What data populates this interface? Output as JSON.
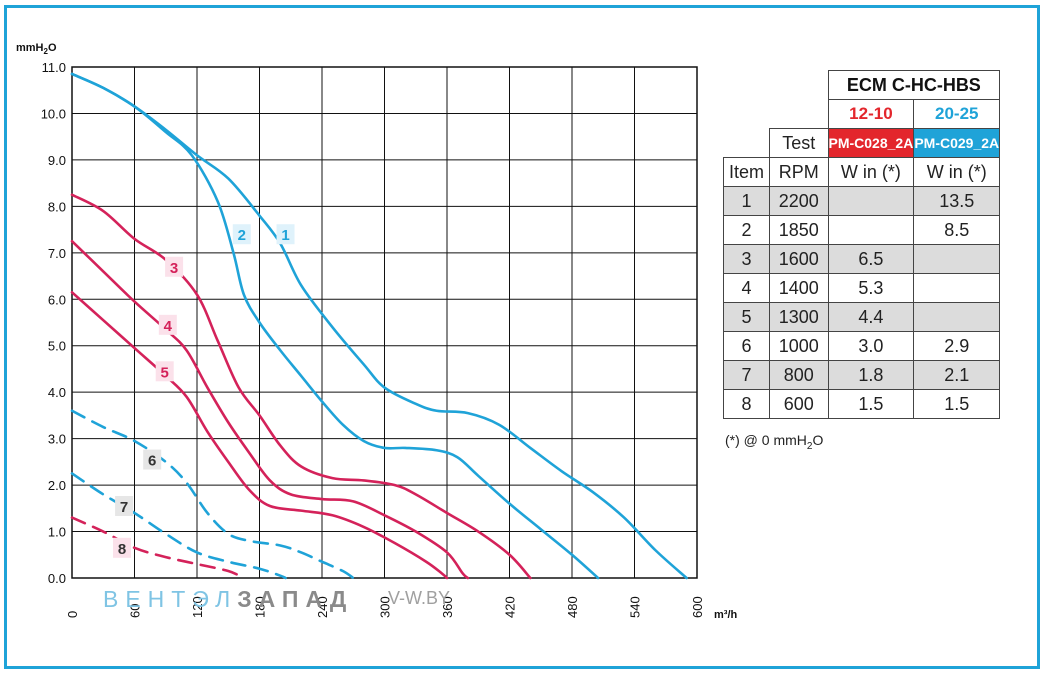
{
  "chart_data": {
    "type": "line",
    "xlabel": "m³/h",
    "ylabel_main": "mmH",
    "ylabel_sub": "2",
    "ylabel_end": "O",
    "xlim": [
      0,
      600
    ],
    "ylim": [
      0,
      11
    ],
    "x_ticks": [
      "0",
      "60",
      "120",
      "180",
      "240",
      "300",
      "360",
      "420",
      "480",
      "540",
      "600"
    ],
    "y_ticks": [
      "0.0",
      "1.0",
      "2.0",
      "3.0",
      "4.0",
      "5.0",
      "6.0",
      "7.0",
      "8.0",
      "9.0",
      "10.0",
      "11.0"
    ],
    "grid": true,
    "series": [
      {
        "name": "1",
        "color": "#1fa3d8",
        "dashed": false,
        "label_pos": [
          205,
          7.4
        ],
        "points": [
          [
            0,
            10.85
          ],
          [
            30,
            10.55
          ],
          [
            60,
            10.15
          ],
          [
            90,
            9.65
          ],
          [
            120,
            9.1
          ],
          [
            150,
            8.6
          ],
          [
            180,
            7.8
          ],
          [
            200,
            7.2
          ],
          [
            220,
            6.3
          ],
          [
            250,
            5.4
          ],
          [
            280,
            4.6
          ],
          [
            300,
            4.1
          ],
          [
            330,
            3.75
          ],
          [
            350,
            3.6
          ],
          [
            380,
            3.55
          ],
          [
            410,
            3.3
          ],
          [
            440,
            2.8
          ],
          [
            470,
            2.3
          ],
          [
            500,
            1.85
          ],
          [
            530,
            1.3
          ],
          [
            560,
            0.6
          ],
          [
            590,
            0
          ]
        ]
      },
      {
        "name": "2",
        "color": "#1fa3d8",
        "dashed": false,
        "label_pos": [
          163,
          7.4
        ],
        "points": [
          [
            0,
            10.85
          ],
          [
            30,
            10.55
          ],
          [
            60,
            10.15
          ],
          [
            90,
            9.6
          ],
          [
            115,
            9.1
          ],
          [
            140,
            8.1
          ],
          [
            155,
            7.0
          ],
          [
            165,
            6.1
          ],
          [
            180,
            5.5
          ],
          [
            200,
            4.9
          ],
          [
            220,
            4.35
          ],
          [
            240,
            3.8
          ],
          [
            260,
            3.3
          ],
          [
            280,
            2.95
          ],
          [
            300,
            2.8
          ],
          [
            320,
            2.8
          ],
          [
            350,
            2.75
          ],
          [
            370,
            2.6
          ],
          [
            390,
            2.2
          ],
          [
            420,
            1.6
          ],
          [
            450,
            1.05
          ],
          [
            480,
            0.5
          ],
          [
            505,
            0
          ]
        ]
      },
      {
        "name": "3",
        "color": "#d4225a",
        "dashed": false,
        "label_pos": [
          98,
          6.7
        ],
        "points": [
          [
            0,
            8.25
          ],
          [
            30,
            7.9
          ],
          [
            60,
            7.3
          ],
          [
            90,
            6.85
          ],
          [
            120,
            6.1
          ],
          [
            140,
            5.1
          ],
          [
            160,
            4.1
          ],
          [
            180,
            3.5
          ],
          [
            200,
            2.85
          ],
          [
            220,
            2.4
          ],
          [
            250,
            2.15
          ],
          [
            280,
            2.1
          ],
          [
            310,
            2.0
          ],
          [
            330,
            1.8
          ],
          [
            360,
            1.4
          ],
          [
            390,
            1.0
          ],
          [
            420,
            0.5
          ],
          [
            440,
            0
          ]
        ]
      },
      {
        "name": "4",
        "color": "#d4225a",
        "dashed": false,
        "label_pos": [
          92,
          5.45
        ],
        "points": [
          [
            0,
            7.25
          ],
          [
            30,
            6.6
          ],
          [
            60,
            5.95
          ],
          [
            90,
            5.35
          ],
          [
            110,
            4.9
          ],
          [
            130,
            4.1
          ],
          [
            150,
            3.35
          ],
          [
            170,
            2.7
          ],
          [
            190,
            2.1
          ],
          [
            210,
            1.8
          ],
          [
            240,
            1.7
          ],
          [
            270,
            1.65
          ],
          [
            300,
            1.35
          ],
          [
            330,
            1.0
          ],
          [
            360,
            0.55
          ],
          [
            375,
            0.1
          ],
          [
            380,
            0
          ]
        ]
      },
      {
        "name": "5",
        "color": "#d4225a",
        "dashed": false,
        "label_pos": [
          89,
          4.45
        ],
        "points": [
          [
            0,
            6.15
          ],
          [
            30,
            5.55
          ],
          [
            60,
            4.95
          ],
          [
            90,
            4.35
          ],
          [
            110,
            3.9
          ],
          [
            130,
            3.15
          ],
          [
            150,
            2.5
          ],
          [
            170,
            1.9
          ],
          [
            190,
            1.55
          ],
          [
            220,
            1.45
          ],
          [
            250,
            1.35
          ],
          [
            280,
            1.1
          ],
          [
            310,
            0.75
          ],
          [
            340,
            0.35
          ],
          [
            355,
            0.1
          ],
          [
            360,
            0
          ]
        ]
      },
      {
        "name": "6",
        "color": "#1fa3d8",
        "dashed": true,
        "label_pos": [
          77,
          2.55
        ],
        "points": [
          [
            0,
            3.6
          ],
          [
            30,
            3.25
          ],
          [
            60,
            2.95
          ],
          [
            90,
            2.5
          ],
          [
            110,
            2.05
          ],
          [
            130,
            1.4
          ],
          [
            150,
            0.95
          ],
          [
            170,
            0.8
          ],
          [
            200,
            0.7
          ],
          [
            220,
            0.55
          ],
          [
            240,
            0.35
          ],
          [
            260,
            0.15
          ],
          [
            270,
            0
          ]
        ]
      },
      {
        "name": "7",
        "color": "#1fa3d8",
        "dashed": true,
        "label_pos": [
          50,
          1.55
        ],
        "points": [
          [
            0,
            2.25
          ],
          [
            30,
            1.8
          ],
          [
            60,
            1.4
          ],
          [
            90,
            0.95
          ],
          [
            120,
            0.55
          ],
          [
            150,
            0.35
          ],
          [
            180,
            0.2
          ],
          [
            200,
            0.05
          ],
          [
            205,
            0
          ]
        ]
      },
      {
        "name": "8",
        "color": "#d4225a",
        "dashed": true,
        "label_pos": [
          48,
          0.65
        ],
        "points": [
          [
            0,
            1.3
          ],
          [
            30,
            1.0
          ],
          [
            60,
            0.65
          ],
          [
            90,
            0.45
          ],
          [
            120,
            0.3
          ],
          [
            150,
            0.15
          ],
          [
            165,
            0
          ]
        ]
      }
    ]
  },
  "table": {
    "model": "ECM C-HC-HBS",
    "variant_a": "12-10",
    "variant_b": "20-25",
    "test_label": "Test",
    "code_a": "PM-C028_2A",
    "code_b": "PM-C029_2A",
    "col_item": "Item",
    "col_rpm": "RPM",
    "col_w_a": "W in (*)",
    "col_w_b": "W in (*)",
    "rows": [
      {
        "item": "1",
        "rpm": "2200",
        "a": "",
        "b": "13.5"
      },
      {
        "item": "2",
        "rpm": "1850",
        "a": "",
        "b": "8.5"
      },
      {
        "item": "3",
        "rpm": "1600",
        "a": "6.5",
        "b": ""
      },
      {
        "item": "4",
        "rpm": "1400",
        "a": "5.3",
        "b": ""
      },
      {
        "item": "5",
        "rpm": "1300",
        "a": "4.4",
        "b": ""
      },
      {
        "item": "6",
        "rpm": "1000",
        "a": "3.0",
        "b": "2.9"
      },
      {
        "item": "7",
        "rpm": "800",
        "a": "1.8",
        "b": "2.1"
      },
      {
        "item": "8",
        "rpm": "600",
        "a": "1.5",
        "b": "1.5"
      }
    ],
    "note_pre": "(*) @ 0 mmH",
    "note_sub": "2",
    "note_post": "O"
  },
  "watermark": {
    "part_a": "ВЕНТЭЛ",
    "part_b": "ЗАПАД",
    "url": "V-W.BY"
  },
  "colors": {
    "blue": "#1fa3d8",
    "red": "#e3262c",
    "curve_red": "#d4225a",
    "frame": "#1fa3d8"
  }
}
